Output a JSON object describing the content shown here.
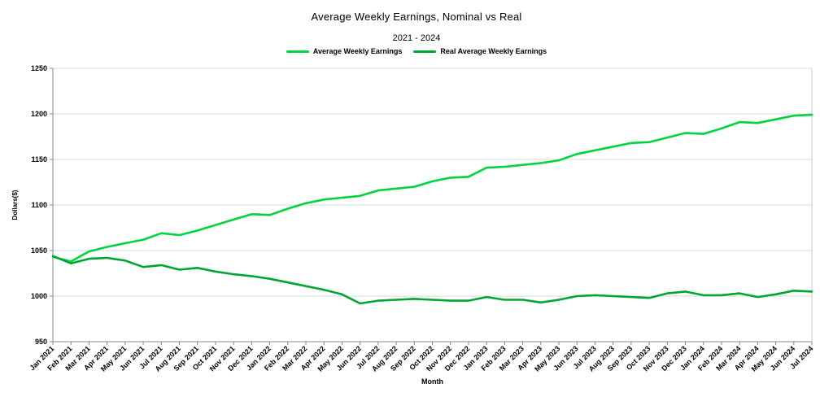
{
  "chart_data": {
    "type": "line",
    "title": "Average Weekly Earnings, Nominal vs Real",
    "subtitle": "2021 - 2024",
    "xlabel": "Month",
    "ylabel": "Dollars($)",
    "ylim": [
      950,
      1250
    ],
    "y_ticks": [
      950,
      1000,
      1050,
      1100,
      1150,
      1200,
      1250
    ],
    "grid": true,
    "legend_position": "top",
    "categories": [
      "Jan 2021",
      "Feb 2021",
      "Mar 2021",
      "Apr 2021",
      "May 2021",
      "Jun 2021",
      "Jul 2021",
      "Aug 2021",
      "Sep 2021",
      "Oct 2021",
      "Nov 2021",
      "Dec 2021",
      "Jan 2022",
      "Feb 2022",
      "Mar 2022",
      "Apr 2022",
      "May 2022",
      "Jun 2022",
      "Jul 2022",
      "Aug 2022",
      "Sep 2022",
      "Oct 2022",
      "Nov 2022",
      "Dec 2022",
      "Jan 2023",
      "Feb 2023",
      "Mar 2023",
      "Apr 2023",
      "May 2023",
      "Jun 2023",
      "Jul 2023",
      "Aug 2023",
      "Sep 2023",
      "Oct 2023",
      "Nov 2023",
      "Dec 2023",
      "Jan 2024",
      "Feb 2024",
      "Mar 2024",
      "Apr 2024",
      "May 2024",
      "Jun 2024",
      "Jul 2024"
    ],
    "series": [
      {
        "name": "Average Weekly Earnings",
        "color": "#00d43f",
        "values": [
          1043,
          1038,
          1049,
          1054,
          1058,
          1062,
          1069,
          1067,
          1072,
          1078,
          1084,
          1090,
          1089,
          1096,
          1102,
          1106,
          1108,
          1110,
          1116,
          1118,
          1120,
          1126,
          1130,
          1131,
          1141,
          1142,
          1144,
          1146,
          1149,
          1156,
          1160,
          1164,
          1168,
          1169,
          1174,
          1179,
          1178,
          1184,
          1191,
          1190,
          1194,
          1198,
          1199
        ]
      },
      {
        "name": "Real Average Weekly Earnings",
        "color": "#00a532",
        "values": [
          1044,
          1036,
          1041,
          1042,
          1039,
          1032,
          1034,
          1029,
          1031,
          1027,
          1024,
          1022,
          1019,
          1015,
          1011,
          1007,
          1002,
          992,
          995,
          996,
          997,
          996,
          995,
          995,
          999,
          996,
          996,
          993,
          996,
          1000,
          1001,
          1000,
          999,
          998,
          1003,
          1005,
          1001,
          1001,
          1003,
          999,
          1002,
          1006,
          1005
        ]
      }
    ],
    "colors": {
      "gridline": "#d9d9d9",
      "axis": "#888888",
      "right_border": "#c8c8c8",
      "text": "#000000"
    }
  }
}
